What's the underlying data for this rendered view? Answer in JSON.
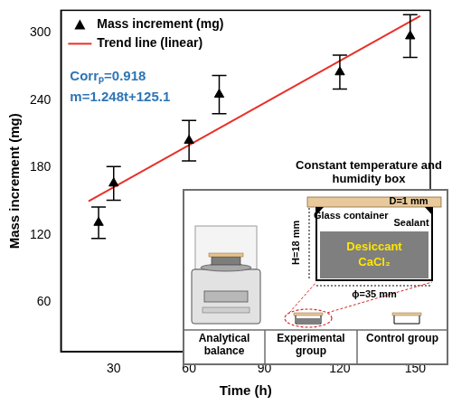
{
  "chart_data": {
    "type": "scatter",
    "x_label": "Time (h)",
    "y_label": "Mass increment (mg)",
    "xlim": [
      9,
      156
    ],
    "xticks": [
      30,
      60,
      90,
      120,
      150
    ],
    "ylim": [
      16,
      320
    ],
    "yticks": [
      60,
      120,
      180,
      240,
      300
    ],
    "grid": false,
    "legend": "upper left",
    "series": [
      {
        "name": "Mass increment (mg)",
        "type": "scatter",
        "color": "#000000",
        "marker": "triangle",
        "x": [
          24,
          30,
          60,
          72,
          120,
          148
        ],
        "values": [
          131,
          166,
          204,
          245,
          265,
          297
        ],
        "errors": [
          14,
          15,
          18,
          17,
          15,
          19
        ]
      },
      {
        "name": "Trend line (linear)",
        "type": "line",
        "color": "#e8302a",
        "line_style": "solid",
        "x": [
          20,
          152
        ],
        "values": [
          150,
          315
        ]
      }
    ],
    "annotations": [
      {
        "text": "Corrₚ=0.918",
        "color": "#2e75b6"
      },
      {
        "text": "m=1.248t+125.1",
        "color": "#2e75b6"
      }
    ]
  },
  "inset": {
    "title": "Constant temperature and humidity box",
    "top_plate": "D=1 mm",
    "container": "Glass container",
    "height": "H=18 mm",
    "sealant": "Sealant",
    "desiccant": "Desiccant",
    "desiccant_formula": "CaCl₂",
    "diameter": "ϕ=35 mm",
    "panels": [
      "Analytical balance",
      "Experimental group",
      "Control group"
    ]
  }
}
